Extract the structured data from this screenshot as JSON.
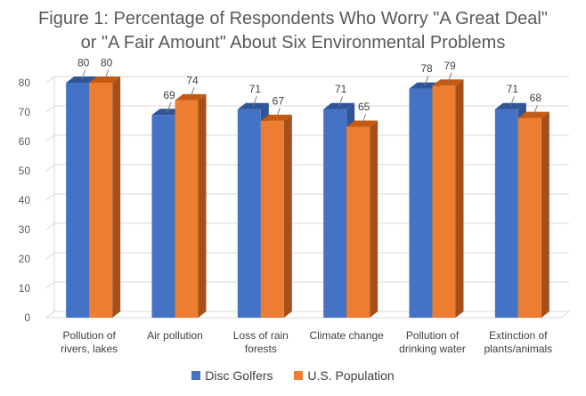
{
  "chart_data": {
    "type": "bar",
    "title_lines": [
      "Figure 1: Percentage of Respondents Who Worry \"A Great Deal\"",
      "or \"A Fair Amount\" About Six Environmental Problems"
    ],
    "categories": [
      [
        "Pollution of",
        "rivers, lakes"
      ],
      [
        "Air pollution"
      ],
      [
        "Loss of rain",
        "forests"
      ],
      [
        "Climate change"
      ],
      [
        "Pollution of",
        "drinking water"
      ],
      [
        "Extinction of",
        "plants/animals"
      ]
    ],
    "series": [
      {
        "name": "Disc Golfers",
        "values": [
          80,
          69,
          71,
          71,
          78,
          71
        ],
        "color": "#4472C4",
        "side": "#2F5597",
        "top": "#2F5597"
      },
      {
        "name": "U.S. Population",
        "values": [
          80,
          74,
          67,
          65,
          79,
          68
        ],
        "color": "#ED7D31",
        "side": "#A5501A",
        "top": "#C55A11"
      }
    ],
    "y_ticks": [
      0,
      10,
      20,
      30,
      40,
      50,
      60,
      70,
      80
    ],
    "ylim": [
      0,
      80
    ],
    "grid": true,
    "legend_position": "bottom"
  }
}
